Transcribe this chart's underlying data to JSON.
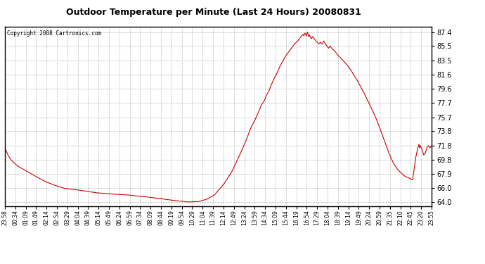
{
  "title": "Outdoor Temperature per Minute (Last 24 Hours) 20080831",
  "copyright": "Copyright 2008 Cartronics.com",
  "line_color": "#cc0000",
  "bg_color": "#ffffff",
  "plot_bg_color": "#ffffff",
  "grid_color": "#aaaaaa",
  "grid_style": "--",
  "yticks": [
    64.0,
    66.0,
    67.9,
    69.8,
    71.8,
    73.8,
    75.7,
    77.7,
    79.6,
    81.6,
    83.5,
    85.5,
    87.4
  ],
  "ylim": [
    63.5,
    88.2
  ],
  "x_labels": [
    "23:58",
    "00:34",
    "01:09",
    "01:49",
    "02:14",
    "02:54",
    "03:29",
    "04:04",
    "04:39",
    "05:14",
    "05:49",
    "06:24",
    "06:59",
    "07:34",
    "08:09",
    "08:44",
    "09:19",
    "09:54",
    "10:29",
    "11:04",
    "11:39",
    "12:14",
    "12:49",
    "13:24",
    "13:59",
    "14:34",
    "15:09",
    "15:44",
    "16:19",
    "16:54",
    "17:29",
    "18:04",
    "18:39",
    "19:14",
    "19:49",
    "20:24",
    "20:59",
    "21:35",
    "22:10",
    "22:45",
    "23:20",
    "23:55"
  ],
  "curve_data": [
    [
      0,
      71.5
    ],
    [
      10,
      70.5
    ],
    [
      20,
      69.8
    ],
    [
      40,
      69.0
    ],
    [
      60,
      68.5
    ],
    [
      80,
      68.0
    ],
    [
      100,
      67.5
    ],
    [
      130,
      66.8
    ],
    [
      160,
      66.3
    ],
    [
      190,
      65.9
    ],
    [
      230,
      65.7
    ],
    [
      260,
      65.5
    ],
    [
      290,
      65.3
    ],
    [
      320,
      65.2
    ],
    [
      350,
      65.1
    ],
    [
      390,
      65.0
    ],
    [
      420,
      64.85
    ],
    [
      455,
      64.7
    ],
    [
      490,
      64.5
    ],
    [
      525,
      64.3
    ],
    [
      555,
      64.15
    ],
    [
      580,
      64.05
    ],
    [
      610,
      64.1
    ],
    [
      635,
      64.4
    ],
    [
      660,
      65.0
    ],
    [
      690,
      66.5
    ],
    [
      715,
      68.2
    ],
    [
      740,
      70.5
    ],
    [
      760,
      72.5
    ],
    [
      775,
      74.2
    ],
    [
      790,
      75.5
    ],
    [
      800,
      76.5
    ],
    [
      810,
      77.5
    ],
    [
      818,
      78.0
    ],
    [
      825,
      78.8
    ],
    [
      832,
      79.3
    ],
    [
      838,
      80.0
    ],
    [
      843,
      80.5
    ],
    [
      848,
      81.0
    ],
    [
      853,
      81.4
    ],
    [
      858,
      81.8
    ],
    [
      863,
      82.3
    ],
    [
      868,
      82.8
    ],
    [
      873,
      83.2
    ],
    [
      878,
      83.6
    ],
    [
      883,
      84.0
    ],
    [
      888,
      84.3
    ],
    [
      893,
      84.6
    ],
    [
      898,
      84.9
    ],
    [
      903,
      85.2
    ],
    [
      908,
      85.5
    ],
    [
      913,
      85.8
    ],
    [
      918,
      86.0
    ],
    [
      923,
      86.2
    ],
    [
      928,
      86.5
    ],
    [
      933,
      86.8
    ],
    [
      937,
      87.0
    ],
    [
      940,
      87.1
    ],
    [
      942,
      86.9
    ],
    [
      944,
      87.1
    ],
    [
      946,
      87.3
    ],
    [
      948,
      87.1
    ],
    [
      950,
      86.9
    ],
    [
      952,
      87.2
    ],
    [
      954,
      87.4
    ],
    [
      956,
      87.0
    ],
    [
      958,
      86.8
    ],
    [
      960,
      87.0
    ],
    [
      963,
      86.7
    ],
    [
      966,
      86.5
    ],
    [
      970,
      86.8
    ],
    [
      975,
      86.5
    ],
    [
      980,
      86.2
    ],
    [
      985,
      86.0
    ],
    [
      990,
      85.8
    ],
    [
      995,
      86.0
    ],
    [
      1000,
      85.8
    ],
    [
      1005,
      86.2
    ],
    [
      1010,
      85.8
    ],
    [
      1015,
      85.5
    ],
    [
      1020,
      85.2
    ],
    [
      1025,
      85.5
    ],
    [
      1030,
      85.2
    ],
    [
      1035,
      85.0
    ],
    [
      1040,
      84.8
    ],
    [
      1045,
      84.5
    ],
    [
      1050,
      84.2
    ],
    [
      1060,
      83.8
    ],
    [
      1070,
      83.3
    ],
    [
      1080,
      82.8
    ],
    [
      1090,
      82.2
    ],
    [
      1100,
      81.5
    ],
    [
      1110,
      80.8
    ],
    [
      1120,
      80.0
    ],
    [
      1130,
      79.2
    ],
    [
      1140,
      78.3
    ],
    [
      1150,
      77.4
    ],
    [
      1160,
      76.5
    ],
    [
      1170,
      75.5
    ],
    [
      1180,
      74.4
    ],
    [
      1190,
      73.2
    ],
    [
      1200,
      72.0
    ],
    [
      1210,
      70.8
    ],
    [
      1220,
      69.8
    ],
    [
      1230,
      69.0
    ],
    [
      1235,
      68.7
    ],
    [
      1240,
      68.4
    ],
    [
      1245,
      68.2
    ],
    [
      1250,
      68.0
    ],
    [
      1255,
      67.8
    ],
    [
      1260,
      67.6
    ],
    [
      1265,
      67.5
    ],
    [
      1270,
      67.4
    ],
    [
      1275,
      67.3
    ],
    [
      1280,
      67.2
    ],
    [
      1285,
      67.1
    ],
    [
      1295,
      70.2
    ],
    [
      1300,
      71.2
    ],
    [
      1305,
      72.0
    ],
    [
      1307,
      71.5
    ],
    [
      1310,
      71.8
    ],
    [
      1312,
      71.5
    ],
    [
      1315,
      71.2
    ],
    [
      1318,
      70.8
    ],
    [
      1320,
      70.5
    ],
    [
      1325,
      70.8
    ],
    [
      1330,
      71.5
    ],
    [
      1335,
      71.8
    ],
    [
      1340,
      71.5
    ],
    [
      1345,
      71.8
    ]
  ]
}
